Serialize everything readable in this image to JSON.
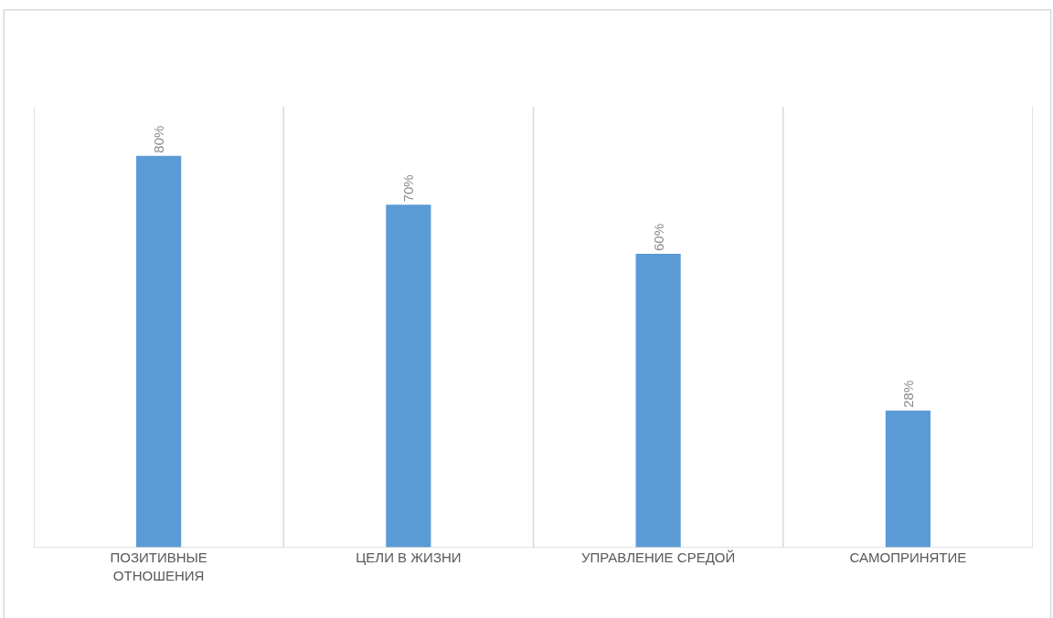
{
  "chart_data": {
    "type": "bar",
    "categories": [
      "ПОЗИТИВНЫЕ ОТНОШЕНИЯ",
      "ЦЕЛИ В ЖИЗНИ",
      "УПРАВЛЕНИЕ СРЕДОЙ",
      "САМОПРИНЯТИЕ"
    ],
    "values": [
      80,
      70,
      60,
      28
    ],
    "value_labels": [
      "80%",
      "70%",
      "60%",
      "28%"
    ],
    "color": "#5b9bd5",
    "ylim": [
      0,
      90
    ],
    "grid": "x"
  }
}
